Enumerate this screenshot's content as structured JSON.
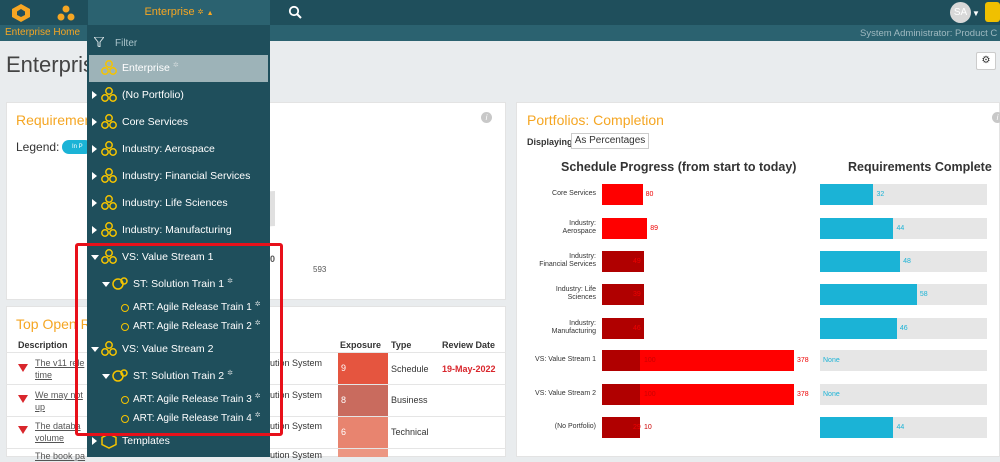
{
  "topbar": {
    "enterprise_label": "Enterprise",
    "avatar_initials": "SA",
    "breadcrumb": "Enterprise Home",
    "user_label": "System Administrator: Product C"
  },
  "page": {
    "title": "Enterprise"
  },
  "requirements_panel": {
    "title": "Requirements",
    "legend_label": "Legend:",
    "legend_pill": "In P",
    "gauge_max": "593",
    "gauge_partial": "0"
  },
  "portfolios_panel": {
    "title": "Portfolios: Completion",
    "displaying_label": "Displaying",
    "displaying_value": "As Percentages",
    "schedule_heading": "Schedule Progress (from start to today)",
    "requirements_heading": "Requirements Complete"
  },
  "chart_data": {
    "type": "bar",
    "categories": [
      "Core Services",
      "Industry: Aerospace",
      "Industry: Financial Services",
      "Industry: Life Sciences",
      "Industry: Manufacturing",
      "VS: Value Stream 1",
      "VS: Value Stream 2",
      "(No Portfolio)"
    ],
    "series": [
      {
        "name": "Schedule Progress (from start to today)",
        "values": [
          80,
          89,
          49,
          39,
          46,
          378,
          378,
          29
        ]
      },
      {
        "name": "Requirements Complete",
        "values": [
          32,
          44,
          48,
          58,
          46,
          null,
          null,
          44
        ]
      }
    ],
    "schedule_partials": [
      null,
      null,
      "",
      "",
      "",
      "100",
      "100",
      "10"
    ],
    "requirement_labels": [
      "32",
      "44",
      "48",
      "58",
      "46",
      "None",
      "None",
      "44"
    ],
    "schedule_labels": [
      "80",
      "89",
      "49",
      "39",
      "46",
      "378",
      "378",
      "29"
    ],
    "row_labels": [
      "Core Services",
      "Industry:\nAerospace",
      "Industry:\nFinancial Services",
      "Industry: Life\nSciences",
      "Industry:\nManufacturing",
      "VS: Value Stream 1",
      "VS: Value Stream 2",
      "(No Portfolio)"
    ]
  },
  "risks_panel": {
    "title": "Top Open R",
    "columns": {
      "description": "Description",
      "exposure": "Exposure",
      "type": "Type",
      "review_date": "Review Date"
    },
    "rows": [
      {
        "desc_1": "The v11 rele",
        "desc_2": "time",
        "owner": "ution System",
        "exposure": "9",
        "type": "Schedule",
        "review": "19-May-2022"
      },
      {
        "desc_1": "We may not",
        "desc_2": "up",
        "owner": "ution System",
        "exposure": "8",
        "type": "Business",
        "review": ""
      },
      {
        "desc_1": "The databa",
        "desc_2": "volume",
        "owner": "ution System",
        "exposure": "6",
        "type": "Technical",
        "review": ""
      },
      {
        "desc_1": "The book pa",
        "desc_2": "",
        "owner": "ution System",
        "exposure": "",
        "type": "",
        "review": ""
      }
    ]
  },
  "dropdown": {
    "filter_placeholder": "Filter",
    "items": [
      {
        "label": "Enterprise"
      },
      {
        "label": "(No Portfolio)"
      },
      {
        "label": "Core Services"
      },
      {
        "label": "Industry: Aerospace"
      },
      {
        "label": "Industry: Financial Services"
      },
      {
        "label": "Industry: Life Sciences"
      },
      {
        "label": "Industry: Manufacturing"
      },
      {
        "label": "VS: Value Stream 1"
      },
      {
        "label": "ST: Solution Train 1"
      },
      {
        "label": "ART: Agile Release Train 1"
      },
      {
        "label": "ART: Agile Release Train 2"
      },
      {
        "label": "VS: Value Stream 2"
      },
      {
        "label": "ST: Solution Train 2"
      },
      {
        "label": "ART: Agile Release Train 3"
      },
      {
        "label": "ART: Agile Release Train 4"
      },
      {
        "label": "Templates"
      }
    ]
  },
  "colors": {
    "accent": "#f5a623",
    "nav": "#1f4f5c",
    "bar_red": "#ff0000",
    "bar_dark_red": "#b00000",
    "req_blue": "#1bb3d6",
    "highlight": "#e8101a"
  }
}
